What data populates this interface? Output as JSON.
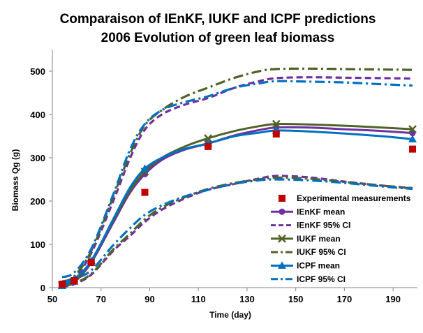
{
  "chart_data": {
    "type": "line",
    "title": [
      "Comparaison of IEnKF, IUKF and ICPF predictions",
      "2006 Evolution of green leaf biomass"
    ],
    "xlabel": "Time (day)",
    "ylabel": "Biomass Qg (g)",
    "xlim": [
      50,
      200
    ],
    "ylim": [
      0,
      550
    ],
    "xticks": [
      50,
      70,
      90,
      110,
      130,
      150,
      170,
      190
    ],
    "yticks": [
      0,
      100,
      200,
      300,
      400,
      500
    ],
    "grid": false,
    "legend_position": "bottom-right",
    "series": [
      {
        "name": "Experimental measurements",
        "kind": "markers",
        "marker": "square",
        "color": "#c00000",
        "points": [
          [
            54,
            8
          ],
          [
            59,
            16
          ],
          [
            66,
            58
          ],
          [
            88,
            220
          ],
          [
            114,
            326
          ],
          [
            142,
            355
          ],
          [
            198,
            320
          ]
        ]
      },
      {
        "name": "IEnKF mean",
        "kind": "line",
        "marker": "circle",
        "color": "#7030a0",
        "dash": "solid",
        "markers_at": [
          54,
          59,
          66,
          88,
          114,
          142,
          198
        ],
        "points": [
          [
            54,
            5
          ],
          [
            59,
            13
          ],
          [
            66,
            58
          ],
          [
            75,
            150
          ],
          [
            82,
            220
          ],
          [
            88,
            262
          ],
          [
            95,
            295
          ],
          [
            104,
            318
          ],
          [
            114,
            333
          ],
          [
            125,
            352
          ],
          [
            135,
            364
          ],
          [
            142,
            370
          ],
          [
            155,
            370
          ],
          [
            170,
            366
          ],
          [
            185,
            362
          ],
          [
            198,
            357
          ]
        ]
      },
      {
        "name": "IEnKF 95% CI",
        "kind": "line",
        "color": "#7030a0",
        "dash": "dash",
        "points": [
          [
            54,
            12
          ],
          [
            59,
            22
          ],
          [
            66,
            80
          ],
          [
            75,
            200
          ],
          [
            82,
            300
          ],
          [
            88,
            365
          ],
          [
            95,
            400
          ],
          [
            104,
            422
          ],
          [
            114,
            438
          ],
          [
            125,
            462
          ],
          [
            135,
            477
          ],
          [
            142,
            484
          ],
          [
            155,
            486
          ],
          [
            170,
            485
          ],
          [
            185,
            484
          ],
          [
            198,
            483
          ]
        ]
      },
      {
        "name": "IEnKF 95% CI lower",
        "kind": "line",
        "color": "#7030a0",
        "dash": "dash",
        "points": [
          [
            54,
            2
          ],
          [
            59,
            8
          ],
          [
            66,
            30
          ],
          [
            75,
            85
          ],
          [
            82,
            120
          ],
          [
            88,
            152
          ],
          [
            95,
            180
          ],
          [
            104,
            205
          ],
          [
            114,
            226
          ],
          [
            125,
            240
          ],
          [
            135,
            252
          ],
          [
            142,
            258
          ],
          [
            155,
            255
          ],
          [
            170,
            245
          ],
          [
            185,
            236
          ],
          [
            198,
            230
          ]
        ]
      },
      {
        "name": "IUKF mean",
        "kind": "line",
        "marker": "x",
        "color": "#4f6228",
        "dash": "solid",
        "markers_at": [
          54,
          59,
          66,
          88,
          114,
          142,
          198
        ],
        "points": [
          [
            54,
            6
          ],
          [
            59,
            15
          ],
          [
            66,
            62
          ],
          [
            75,
            155
          ],
          [
            82,
            225
          ],
          [
            88,
            268
          ],
          [
            95,
            300
          ],
          [
            104,
            325
          ],
          [
            114,
            345
          ],
          [
            125,
            362
          ],
          [
            135,
            373
          ],
          [
            142,
            378
          ],
          [
            155,
            377
          ],
          [
            170,
            374
          ],
          [
            185,
            370
          ],
          [
            198,
            366
          ]
        ]
      },
      {
        "name": "IUKF 95% CI",
        "kind": "line",
        "color": "#4f6228",
        "dash": "dashdot",
        "points": [
          [
            54,
            14
          ],
          [
            59,
            26
          ],
          [
            66,
            85
          ],
          [
            75,
            210
          ],
          [
            82,
            310
          ],
          [
            88,
            375
          ],
          [
            95,
            410
          ],
          [
            104,
            440
          ],
          [
            114,
            462
          ],
          [
            125,
            485
          ],
          [
            135,
            500
          ],
          [
            142,
            505
          ],
          [
            155,
            506
          ],
          [
            170,
            505
          ],
          [
            185,
            504
          ],
          [
            198,
            503
          ]
        ]
      },
      {
        "name": "IUKF 95% CI lower",
        "kind": "line",
        "color": "#4f6228",
        "dash": "dashdot",
        "points": [
          [
            54,
            3
          ],
          [
            59,
            10
          ],
          [
            66,
            32
          ],
          [
            75,
            88
          ],
          [
            82,
            125
          ],
          [
            88,
            158
          ],
          [
            95,
            185
          ],
          [
            104,
            208
          ],
          [
            114,
            228
          ],
          [
            125,
            242
          ],
          [
            135,
            250
          ],
          [
            142,
            254
          ],
          [
            155,
            252
          ],
          [
            170,
            244
          ],
          [
            185,
            236
          ],
          [
            198,
            229
          ]
        ]
      },
      {
        "name": "ICPF mean",
        "kind": "line",
        "marker": "triangle",
        "color": "#0070c0",
        "dash": "solid",
        "markers_at": [
          54,
          59,
          66,
          88,
          114,
          142,
          198
        ],
        "points": [
          [
            54,
            4
          ],
          [
            59,
            20
          ],
          [
            66,
            62
          ],
          [
            75,
            158
          ],
          [
            82,
            232
          ],
          [
            88,
            275
          ],
          [
            95,
            300
          ],
          [
            104,
            320
          ],
          [
            114,
            333
          ],
          [
            125,
            350
          ],
          [
            135,
            358
          ],
          [
            142,
            363
          ],
          [
            155,
            361
          ],
          [
            170,
            356
          ],
          [
            185,
            350
          ],
          [
            198,
            343
          ]
        ]
      },
      {
        "name": "ICPF 95% CI",
        "kind": "line",
        "color": "#0070c0",
        "dash": "dashdot",
        "points": [
          [
            54,
            24
          ],
          [
            59,
            35
          ],
          [
            66,
            90
          ],
          [
            75,
            215
          ],
          [
            82,
            320
          ],
          [
            88,
            378
          ],
          [
            95,
            410
          ],
          [
            104,
            428
          ],
          [
            114,
            442
          ],
          [
            125,
            462
          ],
          [
            135,
            472
          ],
          [
            142,
            477
          ],
          [
            155,
            476
          ],
          [
            170,
            474
          ],
          [
            185,
            470
          ],
          [
            198,
            467
          ]
        ]
      },
      {
        "name": "ICPF 95% CI lower",
        "kind": "line",
        "color": "#0070c0",
        "dash": "dashdot",
        "points": [
          [
            54,
            12
          ],
          [
            59,
            20
          ],
          [
            66,
            40
          ],
          [
            75,
            98
          ],
          [
            82,
            138
          ],
          [
            88,
            168
          ],
          [
            95,
            190
          ],
          [
            104,
            210
          ],
          [
            114,
            226
          ],
          [
            125,
            240
          ],
          [
            135,
            248
          ],
          [
            142,
            250
          ],
          [
            155,
            248
          ],
          [
            170,
            242
          ],
          [
            185,
            234
          ],
          [
            198,
            228
          ]
        ]
      }
    ],
    "legend": [
      {
        "label": "Experimental measurements",
        "series": 0
      },
      {
        "label": "IEnKF mean",
        "series": 1
      },
      {
        "label": "IEnKF 95% CI",
        "series": 2
      },
      {
        "label": "IUKF mean",
        "series": 4
      },
      {
        "label": "IUKF 95% CI",
        "series": 5
      },
      {
        "label": "ICPF mean",
        "series": 7
      },
      {
        "label": "ICPF 95% CI",
        "series": 8
      }
    ]
  }
}
